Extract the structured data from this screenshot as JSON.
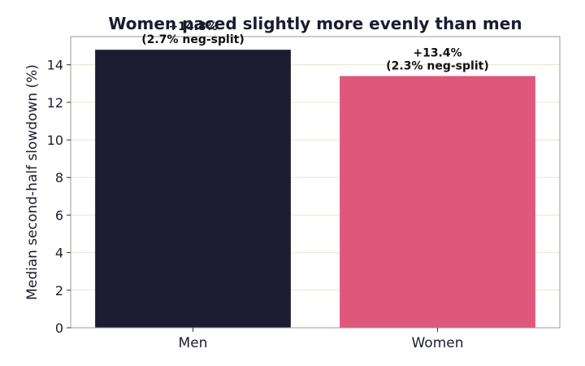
{
  "chart_data": {
    "type": "bar",
    "title": "Women paced slightly more evenly than men",
    "xlabel": "",
    "ylabel": "Median second-half slowdown (%)",
    "categories": [
      "Men",
      "Women"
    ],
    "values": [
      14.8,
      13.4
    ],
    "bar_colors": [
      "#1b1c30",
      "#e0577c"
    ],
    "data_labels": [
      [
        "+14.8%",
        "(2.7% neg-split)"
      ],
      [
        "+13.4%",
        "(2.3% neg-split)"
      ]
    ],
    "ylim": [
      0,
      15.5
    ],
    "yticks": [
      0,
      2,
      4,
      6,
      8,
      10,
      12,
      14
    ],
    "grid": true,
    "legend": "none"
  }
}
